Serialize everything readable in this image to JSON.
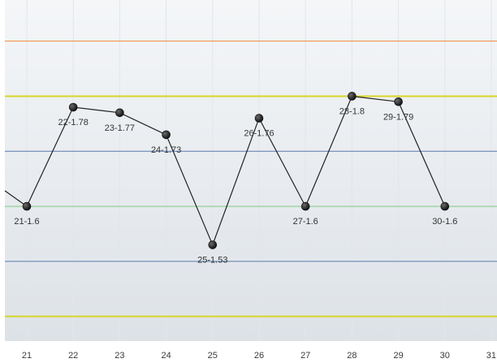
{
  "chart_data": {
    "type": "line",
    "title": "",
    "xlabel": "",
    "ylabel": "",
    "x_ticks": [
      "21",
      "22",
      "23",
      "24",
      "25",
      "26",
      "27",
      "28",
      "29",
      "30",
      "31"
    ],
    "x": [
      20,
      21,
      22,
      23,
      24,
      25,
      26,
      27,
      28,
      29,
      30
    ],
    "series": [
      {
        "values": [
          1.66,
          1.6,
          1.78,
          1.77,
          1.73,
          1.53,
          1.76,
          1.6,
          1.8,
          1.79,
          1.6
        ],
        "labels": [
          "",
          "21-1.6",
          "22-1.78",
          "23-1.77",
          "24-1.73",
          "25-1.53",
          "26-1.76",
          "27-1.6",
          "28-1.8",
          "29-1.79",
          "30-1.6"
        ],
        "color": "#222222"
      }
    ],
    "xlim": [
      20.5,
      31
    ],
    "ylim": [
      1.37,
      1.96
    ],
    "reference_lines": [
      {
        "value": 1.9,
        "color": "#f08a3c"
      },
      {
        "value": 1.8,
        "color": "#d6d62a"
      },
      {
        "value": 1.7,
        "color": "#5b79b0"
      },
      {
        "value": 1.6,
        "color": "#7ec97e"
      },
      {
        "value": 1.5,
        "color": "#5b79b0"
      },
      {
        "value": 1.4,
        "color": "#d6d62a"
      },
      {
        "value": 1.3,
        "color": "#f08a3c"
      }
    ],
    "grid": true,
    "legend": "none"
  },
  "colors": {
    "plot_bg_top": "#f4f6f8",
    "plot_bg_bottom": "#dde2e7",
    "grid": "#e2e6ea",
    "marker": "#222222"
  }
}
